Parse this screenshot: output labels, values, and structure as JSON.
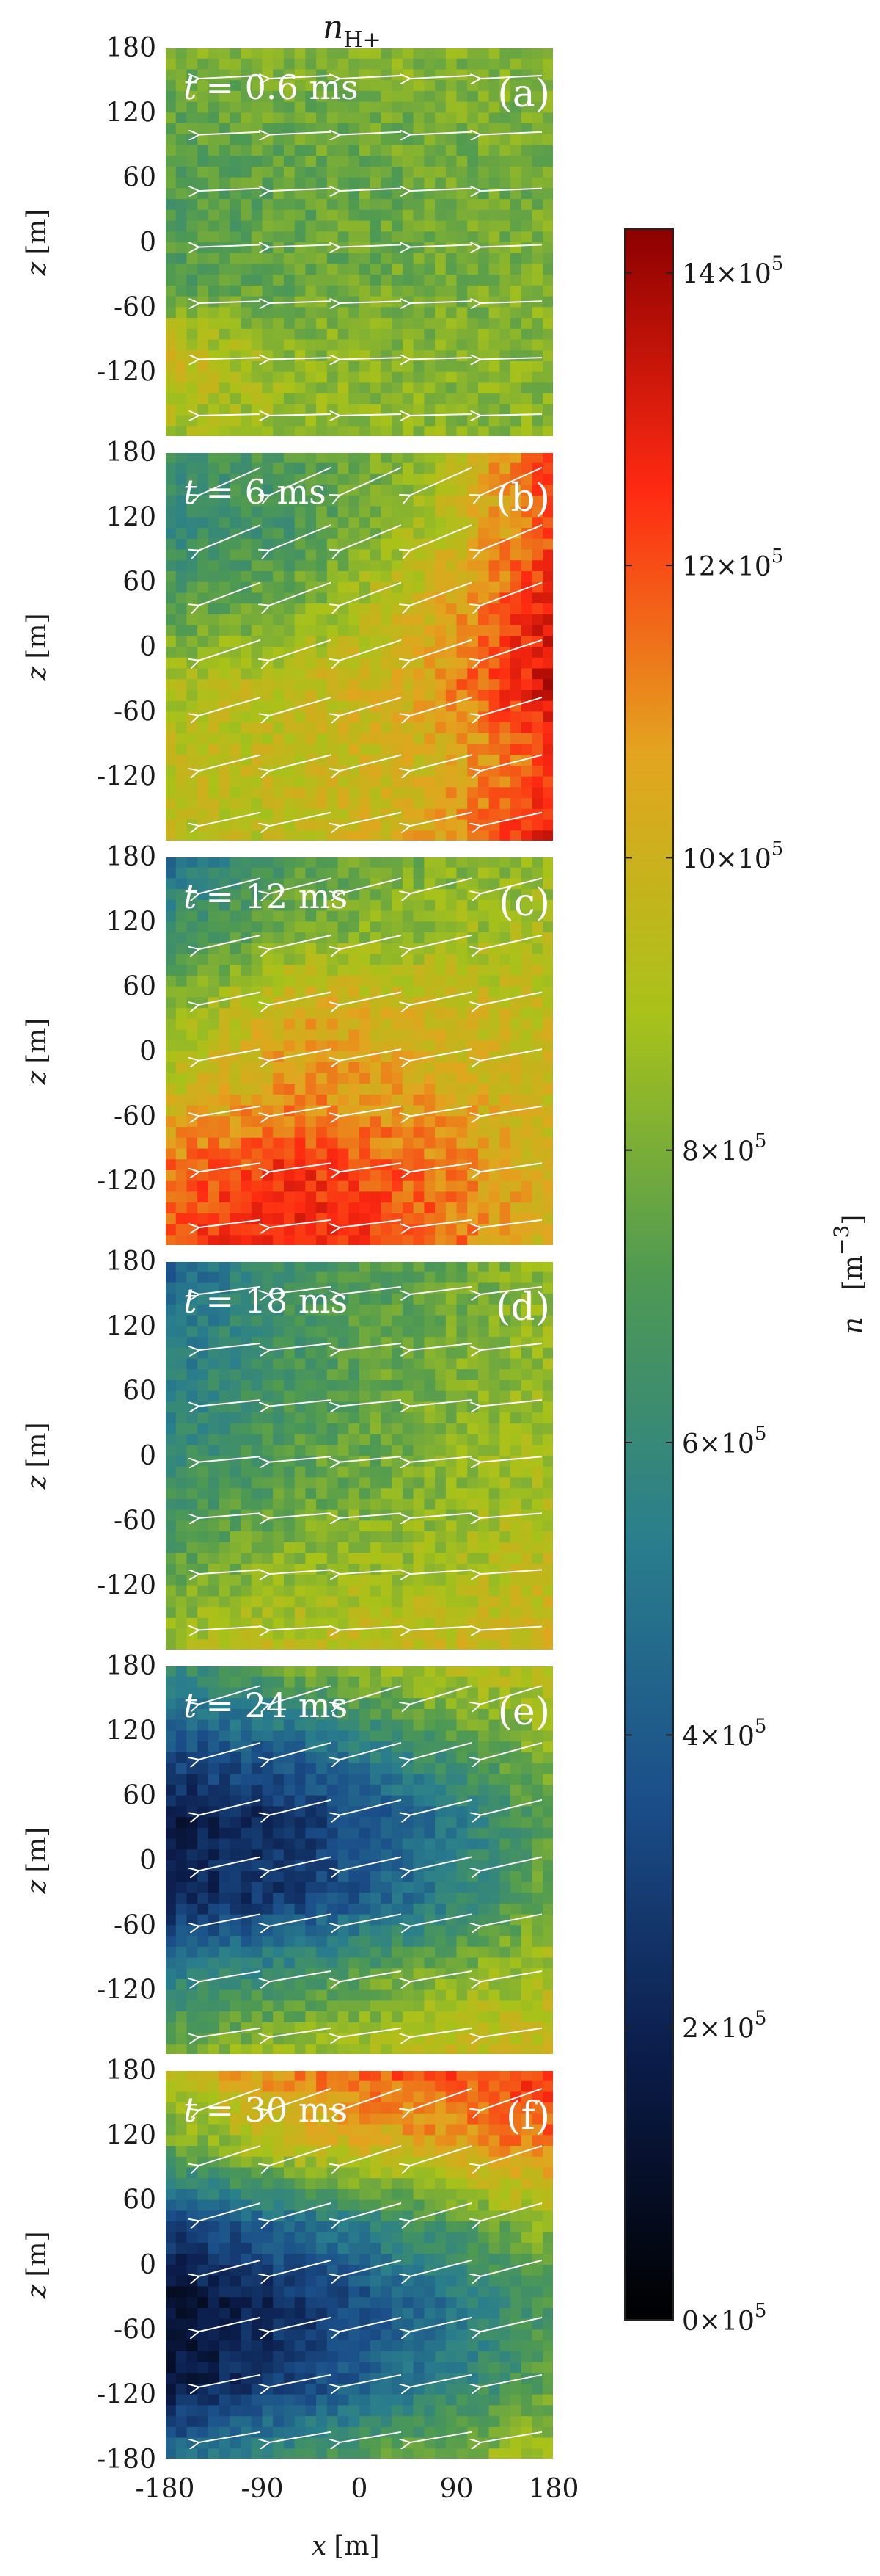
{
  "chart_data": {
    "type": "heatmap",
    "title": "n_H+",
    "title_main": "n",
    "title_sub": "H+",
    "xlabel": "x [m]",
    "xlabel_var": "x",
    "xlabel_unit": "[m]",
    "ylabel": "z [m]",
    "ylabel_var": "z",
    "ylabel_unit": "[m]",
    "xlim": [
      -180,
      180
    ],
    "ylim": [
      -180,
      180
    ],
    "x_ticks": [
      "-180",
      "-90",
      "0",
      "90",
      "180"
    ],
    "y_ticks": [
      "180",
      "120",
      "60",
      "0",
      "-60",
      "-120",
      "-180"
    ],
    "colorbar": {
      "label": "n",
      "unit": "[m^-3]",
      "unit_base": "[m",
      "unit_exp": "−3",
      "unit_close": "]",
      "range": [
        0,
        1430000.0
      ],
      "ticks": [
        {
          "value": 0,
          "mant": "0",
          "exp": "5"
        },
        {
          "value": 200000,
          "mant": "2",
          "exp": "5"
        },
        {
          "value": 400000,
          "mant": "4",
          "exp": "5"
        },
        {
          "value": 600000,
          "mant": "6",
          "exp": "5"
        },
        {
          "value": 800000,
          "mant": "8",
          "exp": "5"
        },
        {
          "value": 1000000,
          "mant": "10",
          "exp": "5"
        },
        {
          "value": 1200000,
          "mant": "12",
          "exp": "5"
        },
        {
          "value": 1400000,
          "mant": "14",
          "exp": "5"
        }
      ],
      "colormap": [
        "#000000",
        "#0b1c4a",
        "#1b4f8a",
        "#2a7f8c",
        "#4f9a52",
        "#a9c21a",
        "#e3a41f",
        "#ff2a12",
        "#8c0000"
      ]
    },
    "arrow_color": "#ffffff",
    "panels": [
      {
        "label": "(a)",
        "time": "t = 0.6 ms",
        "time_t": "t",
        "time_val": "= 0.6 ms",
        "grid": [
          [
            8.0,
            8.2,
            8.3,
            8.1
          ],
          [
            7.4,
            7.7,
            7.9,
            8.0
          ],
          [
            7.0,
            7.5,
            7.8,
            7.9
          ],
          [
            7.2,
            7.6,
            8.0,
            8.1
          ],
          [
            10.0,
            8.4,
            8.2,
            8.2
          ],
          [
            8.8,
            8.6,
            8.4,
            8.3
          ]
        ]
      },
      {
        "label": "(b)",
        "time": "t = 6 ms",
        "time_t": "t",
        "time_val": "= 6 ms",
        "grid": [
          [
            6.5,
            7.0,
            8.5,
            12.5
          ],
          [
            6.0,
            6.8,
            9.0,
            12.0
          ],
          [
            7.2,
            8.0,
            10.0,
            13.0
          ],
          [
            9.0,
            9.5,
            10.5,
            13.5
          ],
          [
            9.5,
            9.5,
            10.0,
            12.0
          ],
          [
            9.2,
            9.4,
            10.5,
            13.0
          ]
        ]
      },
      {
        "label": "(c)",
        "time": "t = 12 ms",
        "time_t": "t",
        "time_val": "= 12 ms",
        "grid": [
          [
            4.5,
            7.2,
            8.0,
            8.5
          ],
          [
            6.5,
            8.0,
            8.5,
            9.0
          ],
          [
            8.0,
            10.5,
            10.0,
            9.5
          ],
          [
            9.5,
            11.0,
            10.5,
            9.8
          ],
          [
            11.5,
            12.5,
            11.5,
            10.0
          ],
          [
            12.0,
            13.0,
            12.0,
            10.0
          ]
        ]
      },
      {
        "label": "(d)",
        "time": "t = 18 ms",
        "time_t": "t",
        "time_val": "= 18 ms",
        "grid": [
          [
            4.0,
            6.5,
            7.5,
            8.5
          ],
          [
            5.0,
            6.8,
            7.8,
            8.5
          ],
          [
            5.5,
            7.0,
            8.0,
            8.8
          ],
          [
            6.5,
            7.5,
            8.2,
            9.0
          ],
          [
            7.5,
            8.5,
            8.8,
            9.5
          ],
          [
            8.8,
            9.5,
            9.8,
            10.0
          ]
        ]
      },
      {
        "label": "(e)",
        "time": "t = 24 ms",
        "time_t": "t",
        "time_val": "= 24 ms",
        "grid": [
          [
            6.0,
            8.0,
            9.0,
            9.5
          ],
          [
            3.5,
            4.5,
            6.5,
            8.5
          ],
          [
            1.5,
            2.5,
            4.5,
            7.5
          ],
          [
            2.0,
            3.0,
            5.0,
            8.0
          ],
          [
            5.5,
            6.5,
            8.0,
            9.0
          ],
          [
            8.0,
            8.8,
            9.5,
            9.8
          ]
        ]
      },
      {
        "label": "(f)",
        "time": "t = 30 ms",
        "time_t": "t",
        "time_val": "= 30 ms",
        "grid": [
          [
            9.5,
            11.5,
            12.0,
            12.5
          ],
          [
            7.5,
            9.5,
            10.5,
            11.5
          ],
          [
            3.0,
            4.5,
            6.5,
            8.5
          ],
          [
            1.0,
            2.5,
            4.5,
            7.0
          ],
          [
            1.5,
            3.0,
            5.0,
            7.5
          ],
          [
            4.5,
            6.5,
            8.0,
            9.0
          ]
        ]
      }
    ]
  }
}
